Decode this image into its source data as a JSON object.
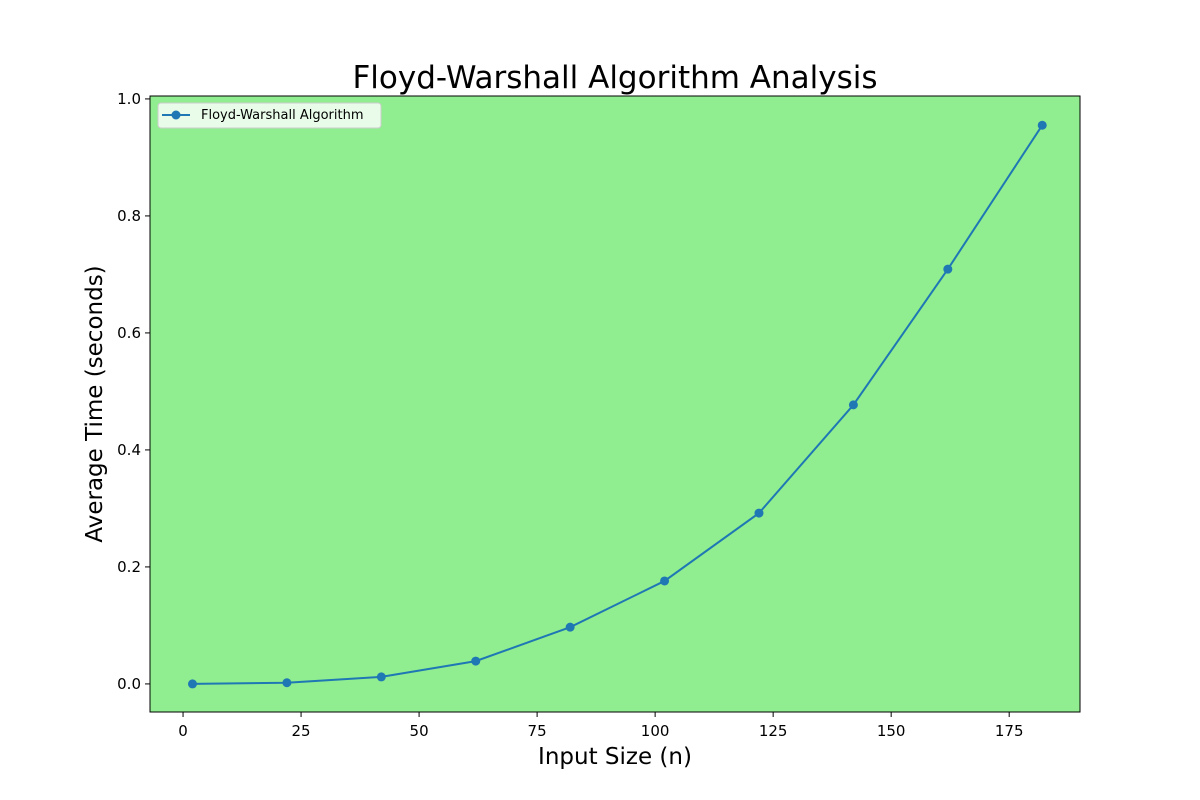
{
  "chart_data": {
    "type": "line",
    "title": "Floyd-Warshall Algorithm Analysis",
    "xlabel": "Input Size (n)",
    "ylabel": "Average Time (seconds)",
    "xlim": [
      -7,
      190
    ],
    "ylim": [
      -0.048,
      1.005
    ],
    "xticks": [
      0,
      25,
      50,
      75,
      100,
      125,
      150,
      175
    ],
    "yticks": [
      0.0,
      0.2,
      0.4,
      0.6,
      0.8,
      1.0
    ],
    "xtick_labels": [
      "0",
      "25",
      "50",
      "75",
      "100",
      "125",
      "150",
      "175"
    ],
    "ytick_labels": [
      "0.0",
      "0.2",
      "0.4",
      "0.6",
      "0.8",
      "1.0"
    ],
    "grid": false,
    "legend_position": "upper-left",
    "plot_background": "#90EE90",
    "series": [
      {
        "name": "Floyd-Warshall Algorithm",
        "color": "#1f77b4",
        "marker": "circle",
        "x": [
          2,
          22,
          42,
          62,
          82,
          102,
          122,
          142,
          162,
          182
        ],
        "y": [
          0.0,
          0.002,
          0.012,
          0.039,
          0.097,
          0.176,
          0.292,
          0.477,
          0.709,
          0.955
        ]
      }
    ]
  }
}
